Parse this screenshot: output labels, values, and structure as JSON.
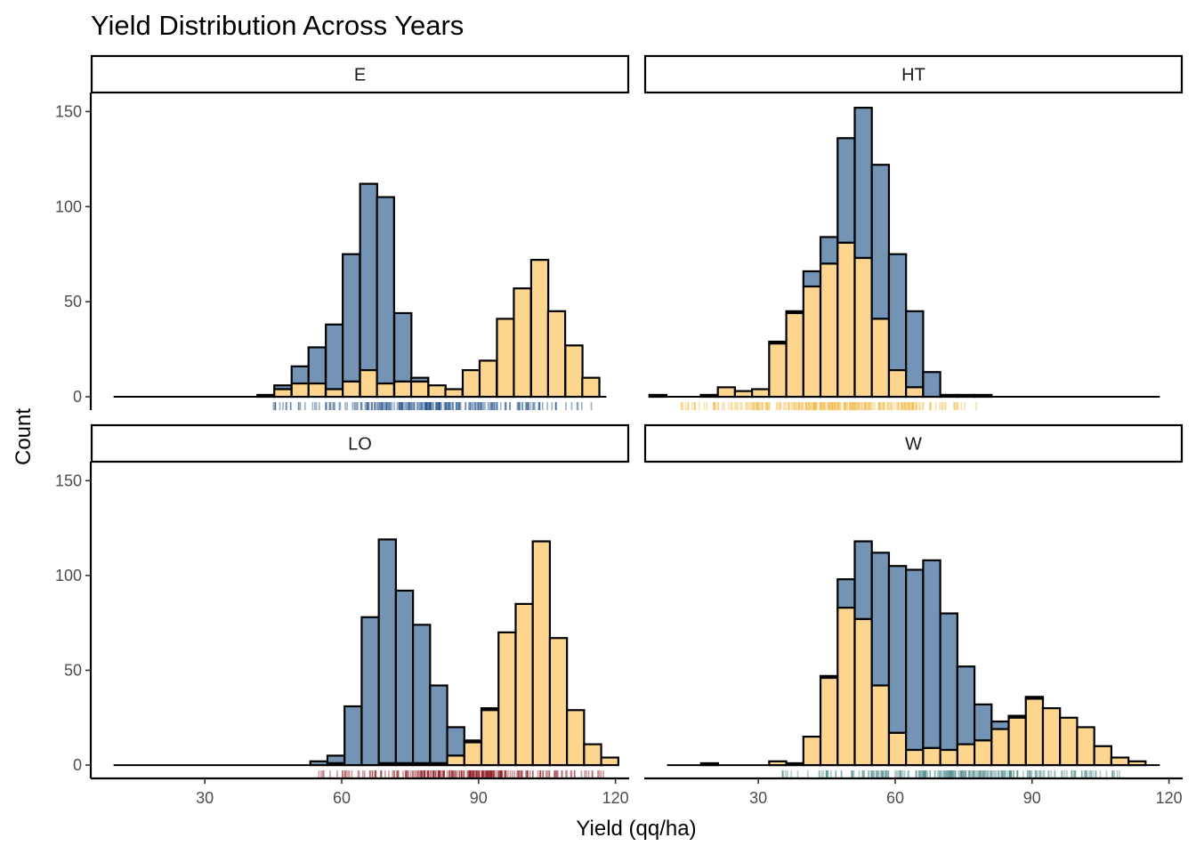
{
  "chart_data": {
    "type": "bar",
    "subtype": "faceted-stacked-histogram",
    "title": "Yield Distribution Across Years",
    "xlabel": "Yield (qq/ha)",
    "ylabel": "Count",
    "xlim": [
      5,
      123
    ],
    "ylim": [
      -7,
      160
    ],
    "xticks": [
      30,
      60,
      90,
      120
    ],
    "yticks": [
      0,
      50,
      100,
      150
    ],
    "grid": false,
    "legend": "none",
    "bin_width": 3.75,
    "colors": {
      "top_fill": "#7394b5",
      "bottom_fill": "#fcd68e",
      "outline": "#000000"
    },
    "panels": [
      {
        "label": "E",
        "rug_color": "#1f4e85",
        "rug_range": [
          45,
          115
        ],
        "rug_count": 240,
        "bins": [
          {
            "x": 43.4,
            "total": 1,
            "bottom": 0
          },
          {
            "x": 47.1,
            "total": 6,
            "bottom": 4
          },
          {
            "x": 50.9,
            "total": 16,
            "bottom": 7
          },
          {
            "x": 54.6,
            "total": 26,
            "bottom": 7
          },
          {
            "x": 58.4,
            "total": 38,
            "bottom": 4
          },
          {
            "x": 62.1,
            "total": 75,
            "bottom": 8
          },
          {
            "x": 65.9,
            "total": 112,
            "bottom": 14
          },
          {
            "x": 69.6,
            "total": 105,
            "bottom": 7
          },
          {
            "x": 73.4,
            "total": 44,
            "bottom": 8
          },
          {
            "x": 77.1,
            "total": 10,
            "bottom": 8
          },
          {
            "x": 80.9,
            "total": 6,
            "bottom": 6
          },
          {
            "x": 84.6,
            "total": 4,
            "bottom": 4
          },
          {
            "x": 88.4,
            "total": 14,
            "bottom": 14
          },
          {
            "x": 92.1,
            "total": 19,
            "bottom": 19
          },
          {
            "x": 95.9,
            "total": 41,
            "bottom": 41
          },
          {
            "x": 99.6,
            "total": 57,
            "bottom": 57
          },
          {
            "x": 103.4,
            "total": 72,
            "bottom": 72
          },
          {
            "x": 107.1,
            "total": 45,
            "bottom": 45
          },
          {
            "x": 110.9,
            "total": 27,
            "bottom": 27
          },
          {
            "x": 114.6,
            "total": 10,
            "bottom": 10
          }
        ]
      },
      {
        "label": "HT",
        "rug_color": "#f4b840",
        "rug_range": [
          13,
          80
        ],
        "rug_count": 260,
        "bins": [
          {
            "x": 8.0,
            "total": 1,
            "bottom": 1
          },
          {
            "x": 19.25,
            "total": 1,
            "bottom": 1
          },
          {
            "x": 23.0,
            "total": 5,
            "bottom": 5
          },
          {
            "x": 26.75,
            "total": 3,
            "bottom": 3
          },
          {
            "x": 30.5,
            "total": 4,
            "bottom": 4
          },
          {
            "x": 34.25,
            "total": 29,
            "bottom": 28
          },
          {
            "x": 38.0,
            "total": 45,
            "bottom": 44
          },
          {
            "x": 41.75,
            "total": 66,
            "bottom": 58
          },
          {
            "x": 45.5,
            "total": 84,
            "bottom": 70
          },
          {
            "x": 49.25,
            "total": 136,
            "bottom": 81
          },
          {
            "x": 53.0,
            "total": 152,
            "bottom": 73
          },
          {
            "x": 56.75,
            "total": 122,
            "bottom": 41
          },
          {
            "x": 60.5,
            "total": 75,
            "bottom": 14
          },
          {
            "x": 64.25,
            "total": 45,
            "bottom": 5
          },
          {
            "x": 68.0,
            "total": 13,
            "bottom": 0
          },
          {
            "x": 71.75,
            "total": 1,
            "bottom": 0
          },
          {
            "x": 75.5,
            "total": 1,
            "bottom": 0
          },
          {
            "x": 79.25,
            "total": 1,
            "bottom": 0
          }
        ]
      },
      {
        "label": "LO",
        "rug_color": "#8e1b23",
        "rug_range": [
          55,
          118
        ],
        "rug_count": 260,
        "bins": [
          {
            "x": 55.0,
            "total": 2,
            "bottom": 0
          },
          {
            "x": 58.75,
            "total": 5,
            "bottom": 1
          },
          {
            "x": 62.5,
            "total": 31,
            "bottom": 0
          },
          {
            "x": 66.25,
            "total": 78,
            "bottom": 0
          },
          {
            "x": 70.0,
            "total": 119,
            "bottom": 1
          },
          {
            "x": 73.75,
            "total": 92,
            "bottom": 1
          },
          {
            "x": 77.5,
            "total": 74,
            "bottom": 1
          },
          {
            "x": 81.25,
            "total": 42,
            "bottom": 1
          },
          {
            "x": 85.0,
            "total": 20,
            "bottom": 5
          },
          {
            "x": 88.75,
            "total": 13,
            "bottom": 12
          },
          {
            "x": 92.5,
            "total": 30,
            "bottom": 29
          },
          {
            "x": 96.25,
            "total": 70,
            "bottom": 70
          },
          {
            "x": 100.0,
            "total": 85,
            "bottom": 85
          },
          {
            "x": 103.75,
            "total": 118,
            "bottom": 118
          },
          {
            "x": 107.5,
            "total": 67,
            "bottom": 67
          },
          {
            "x": 111.25,
            "total": 29,
            "bottom": 29
          },
          {
            "x": 115.0,
            "total": 11,
            "bottom": 11
          },
          {
            "x": 118.75,
            "total": 4,
            "bottom": 4
          }
        ]
      },
      {
        "label": "W",
        "rug_color": "#4f8a8b",
        "rug_range": [
          35,
          112
        ],
        "rug_count": 260,
        "bins": [
          {
            "x": 19.3,
            "total": 1,
            "bottom": 1
          },
          {
            "x": 34.25,
            "total": 2,
            "bottom": 2
          },
          {
            "x": 38.0,
            "total": 1,
            "bottom": 1
          },
          {
            "x": 41.75,
            "total": 15,
            "bottom": 15
          },
          {
            "x": 45.5,
            "total": 47,
            "bottom": 46
          },
          {
            "x": 49.25,
            "total": 98,
            "bottom": 83
          },
          {
            "x": 53.0,
            "total": 118,
            "bottom": 77
          },
          {
            "x": 56.75,
            "total": 112,
            "bottom": 42
          },
          {
            "x": 60.5,
            "total": 105,
            "bottom": 17
          },
          {
            "x": 64.25,
            "total": 103,
            "bottom": 8
          },
          {
            "x": 68.0,
            "total": 108,
            "bottom": 9
          },
          {
            "x": 71.75,
            "total": 80,
            "bottom": 8
          },
          {
            "x": 75.5,
            "total": 52,
            "bottom": 11
          },
          {
            "x": 79.25,
            "total": 32,
            "bottom": 13
          },
          {
            "x": 83.0,
            "total": 23,
            "bottom": 19
          },
          {
            "x": 86.75,
            "total": 26,
            "bottom": 25
          },
          {
            "x": 90.5,
            "total": 36,
            "bottom": 35
          },
          {
            "x": 94.25,
            "total": 30,
            "bottom": 30
          },
          {
            "x": 98.0,
            "total": 25,
            "bottom": 25
          },
          {
            "x": 101.75,
            "total": 20,
            "bottom": 20
          },
          {
            "x": 105.5,
            "total": 10,
            "bottom": 10
          },
          {
            "x": 109.25,
            "total": 4,
            "bottom": 4
          },
          {
            "x": 113.0,
            "total": 2,
            "bottom": 2
          }
        ]
      }
    ]
  }
}
